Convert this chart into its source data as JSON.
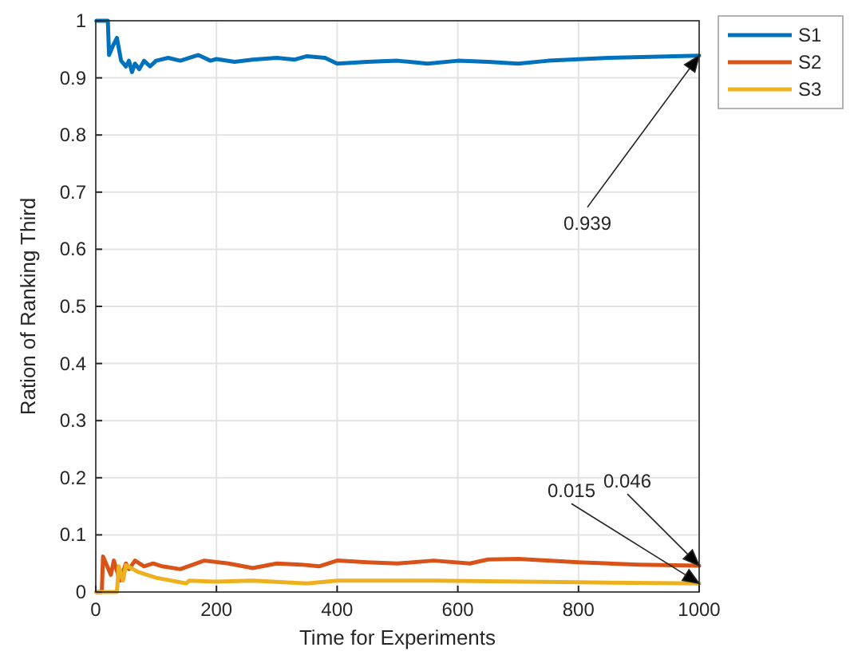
{
  "chart_data": {
    "type": "line",
    "xlabel": "Time for Experiments",
    "ylabel": "Ration of Ranking Third",
    "xlim": [
      0,
      1000
    ],
    "ylim": [
      0,
      1
    ],
    "xticks": [
      0,
      200,
      400,
      600,
      800,
      1000
    ],
    "yticks": [
      0,
      0.1,
      0.2,
      0.3,
      0.4,
      0.5,
      0.6,
      0.7,
      0.8,
      0.9,
      1
    ],
    "grid": true,
    "legend": "top right",
    "series": [
      {
        "name": "S1",
        "color": "#0072bd",
        "x": [
          1,
          20,
          22,
          28,
          35,
          42,
          50,
          55,
          60,
          65,
          72,
          80,
          90,
          100,
          120,
          140,
          170,
          190,
          200,
          230,
          260,
          300,
          330,
          350,
          380,
          400,
          450,
          500,
          550,
          600,
          650,
          700,
          750,
          850,
          1000
        ],
        "values": [
          1,
          1,
          0.94,
          0.955,
          0.97,
          0.93,
          0.92,
          0.93,
          0.91,
          0.925,
          0.915,
          0.93,
          0.92,
          0.93,
          0.935,
          0.93,
          0.94,
          0.93,
          0.933,
          0.928,
          0.932,
          0.935,
          0.932,
          0.938,
          0.935,
          0.925,
          0.928,
          0.93,
          0.925,
          0.93,
          0.928,
          0.925,
          0.93,
          0.935,
          0.939
        ]
      },
      {
        "name": "S2",
        "color": "#d95319",
        "x": [
          1,
          10,
          12,
          25,
          30,
          40,
          50,
          55,
          65,
          80,
          95,
          110,
          140,
          180,
          220,
          260,
          300,
          340,
          370,
          400,
          450,
          500,
          560,
          620,
          650,
          700,
          800,
          900,
          1000
        ],
        "values": [
          0,
          0,
          0.062,
          0.03,
          0.055,
          0.02,
          0.05,
          0.04,
          0.055,
          0.045,
          0.05,
          0.045,
          0.04,
          0.055,
          0.05,
          0.042,
          0.05,
          0.048,
          0.045,
          0.055,
          0.052,
          0.05,
          0.055,
          0.05,
          0.057,
          0.058,
          0.052,
          0.048,
          0.046
        ]
      },
      {
        "name": "S3",
        "color": "#edb120",
        "x": [
          1,
          35,
          38,
          45,
          50,
          70,
          100,
          150,
          155,
          200,
          260,
          350,
          400,
          560,
          800,
          1000
        ],
        "values": [
          0,
          0,
          0.045,
          0.02,
          0.047,
          0.035,
          0.025,
          0.015,
          0.02,
          0.018,
          0.02,
          0.015,
          0.02,
          0.02,
          0.017,
          0.015
        ]
      }
    ],
    "annotations": [
      "0.939",
      "0.046",
      "0.015"
    ]
  }
}
